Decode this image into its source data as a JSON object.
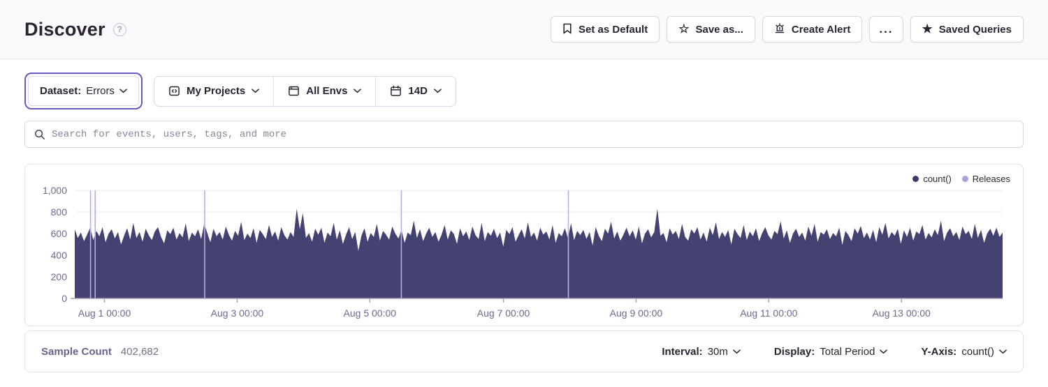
{
  "header": {
    "title": "Discover",
    "actions": {
      "set_default": "Set as Default",
      "save_as": "Save as...",
      "create_alert": "Create Alert",
      "more": "...",
      "saved_queries": "Saved Queries"
    }
  },
  "filters": {
    "dataset_label": "Dataset:",
    "dataset_value": "Errors",
    "projects": "My Projects",
    "environments": "All Envs",
    "date_range": "14D"
  },
  "search": {
    "placeholder": "Search for events, users, tags, and more"
  },
  "chart_data": {
    "type": "area",
    "series_name": "count()",
    "legend": {
      "count": "count()",
      "releases": "Releases"
    },
    "ylim": [
      0,
      1000
    ],
    "grid": true,
    "legend_position": "top-right",
    "y_ticks": [
      {
        "value": 0,
        "label": "0"
      },
      {
        "value": 200,
        "label": "200"
      },
      {
        "value": 400,
        "label": "400"
      },
      {
        "value": 600,
        "label": "600"
      },
      {
        "value": 800,
        "label": "800"
      },
      {
        "value": 1000,
        "label": "1,000"
      }
    ],
    "x_ticks": [
      {
        "pos": 0.032,
        "label": "Aug 1 00:00"
      },
      {
        "pos": 0.175,
        "label": "Aug 3 00:00"
      },
      {
        "pos": 0.318,
        "label": "Aug 5 00:00"
      },
      {
        "pos": 0.462,
        "label": "Aug 7 00:00"
      },
      {
        "pos": 0.605,
        "label": "Aug 9 00:00"
      },
      {
        "pos": 0.748,
        "label": "Aug 11 00:00"
      },
      {
        "pos": 0.891,
        "label": "Aug 13 00:00"
      }
    ],
    "release_positions": [
      0.017,
      0.022,
      0.14,
      0.352,
      0.532
    ],
    "values": [
      640,
      560,
      610,
      530,
      590,
      655,
      540,
      625,
      575,
      660,
      520,
      600,
      640,
      555,
      615,
      500,
      580,
      650,
      545,
      700,
      560,
      615,
      525,
      645,
      585,
      540,
      620,
      660,
      570,
      510,
      630,
      595,
      655,
      545,
      605,
      565,
      695,
      530,
      610,
      575,
      640,
      550,
      690,
      605,
      520,
      645,
      575,
      615,
      545,
      665,
      590,
      535,
      625,
      580,
      710,
      540,
      600,
      560,
      650,
      515,
      635,
      595,
      550,
      680,
      570,
      620,
      535,
      660,
      585,
      545,
      615,
      570,
      830,
      640,
      790,
      560,
      605,
      525,
      645,
      590,
      655,
      515,
      610,
      575,
      700,
      545,
      630,
      505,
      590,
      660,
      550,
      615,
      440,
      580,
      650,
      525,
      605,
      570,
      690,
      535,
      625,
      590,
      545,
      665,
      600,
      555,
      635,
      515,
      610,
      585,
      720,
      560,
      640,
      530,
      600,
      655,
      570,
      615,
      525,
      590,
      680,
      545,
      630,
      595,
      505,
      650,
      575,
      620,
      540,
      665,
      585,
      550,
      700,
      530,
      615,
      580,
      645,
      560,
      610,
      480,
      635,
      595,
      660,
      525,
      585,
      640,
      555,
      705,
      570,
      610,
      535,
      655,
      590,
      620,
      545,
      680,
      515,
      605,
      575,
      650,
      560,
      695,
      540,
      625,
      585,
      635,
      550,
      615,
      490,
      660,
      580,
      530,
      645,
      600,
      710,
      555,
      620,
      535,
      590,
      655,
      575,
      630,
      545,
      665,
      510,
      600,
      640,
      565,
      615,
      830,
      580,
      605,
      520,
      650,
      590,
      625,
      550,
      690,
      570,
      535,
      640,
      600,
      660,
      545,
      610,
      525,
      655,
      585,
      705,
      550,
      615,
      570,
      635,
      500,
      645,
      595,
      560,
      680,
      540,
      620,
      575,
      650,
      530,
      605,
      660,
      585,
      545,
      625,
      595,
      715,
      555,
      630,
      515,
      600,
      645,
      570,
      610,
      535,
      665,
      580,
      690,
      525,
      615,
      590,
      640,
      550,
      605,
      575,
      655,
      495,
      625,
      585,
      530,
      650,
      600,
      670,
      560,
      610,
      545,
      635,
      520,
      660,
      590,
      700,
      555,
      615,
      580,
      645,
      505,
      630,
      570,
      655,
      535,
      620,
      595,
      680,
      545,
      605,
      565,
      640,
      585,
      720,
      530,
      610,
      650,
      575,
      615,
      540,
      665,
      595,
      625,
      550,
      690,
      560,
      635,
      515,
      600,
      645,
      580,
      655,
      570,
      610
    ],
    "colors": {
      "area": "#444271",
      "release": "#B9AEE4",
      "grid": "#EDE9F2",
      "axis_line": "#A79FBC",
      "axis_text": "#6F6791",
      "accent": "#6559C5"
    }
  },
  "footer": {
    "sample_count_label": "Sample Count",
    "sample_count_value": "402,682",
    "interval_label": "Interval:",
    "interval_value": "30m",
    "display_label": "Display:",
    "display_value": "Total Period",
    "yaxis_label": "Y-Axis:",
    "yaxis_value": "count()"
  }
}
